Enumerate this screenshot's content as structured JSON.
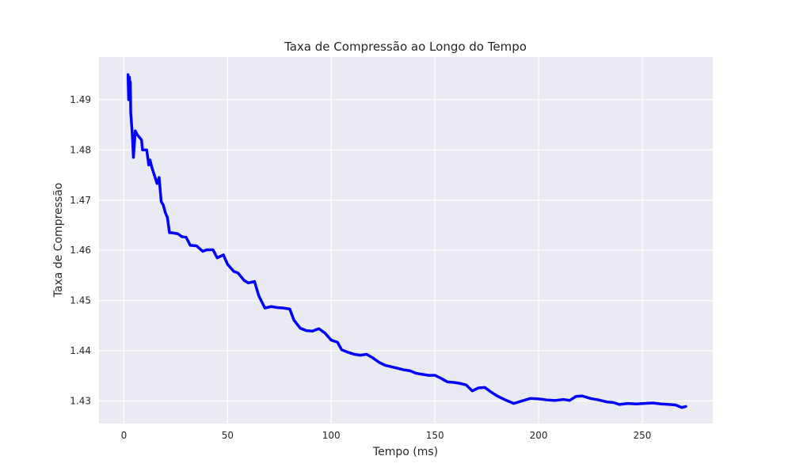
{
  "chart_data": {
    "type": "line",
    "title": "Taxa de Compressão ao Longo do Tempo",
    "xlabel": "Tempo (ms)",
    "ylabel": "Taxa de Compressão",
    "xlim": [
      -12,
      284
    ],
    "ylim": [
      1.4255,
      1.4985
    ],
    "xticks": [
      0,
      50,
      100,
      150,
      200,
      250
    ],
    "xtick_labels": [
      "0",
      "50",
      "100",
      "150",
      "200",
      "250"
    ],
    "yticks": [
      1.43,
      1.44,
      1.45,
      1.46,
      1.47,
      1.48,
      1.49
    ],
    "ytick_labels": [
      "1.43",
      "1.44",
      "1.45",
      "1.46",
      "1.47",
      "1.48",
      "1.49"
    ],
    "grid": true,
    "legend": "none",
    "colors": {
      "background": "#eaeaf2",
      "grid": "#ffffff",
      "line": "#0000ff"
    },
    "series": [
      {
        "x": [
          2.0,
          2.3,
          2.6,
          2.9,
          3.0,
          3.1,
          3.3,
          4.0,
          4.6,
          5.5,
          6.5,
          8.5,
          9.0,
          11.0,
          12.0,
          12.6,
          13.5,
          16.0,
          17.0,
          18.0,
          19.0,
          20.0,
          21.0,
          22.0,
          23.0,
          26.0,
          28.0,
          30.0,
          32.0,
          35.0,
          38.0,
          40.0,
          43.0,
          45.0,
          48.0,
          50.0,
          53.0,
          55.0,
          58.0,
          60.0,
          63.0,
          65.0,
          68.0,
          71.0,
          74.0,
          77.0,
          80.0,
          82.0,
          85.0,
          88.0,
          91.0,
          94.0,
          97.0,
          100.0,
          103.0,
          105.0,
          108.0,
          111.0,
          114.0,
          117.0,
          120.0,
          123.0,
          126.0,
          129.0,
          132.0,
          135.0,
          138.0,
          141.0,
          144.0,
          147.0,
          150.0,
          153.0,
          156.0,
          159.0,
          162.0,
          165.0,
          168.0,
          171.0,
          174.0,
          177.0,
          180.0,
          184.0,
          188.0,
          192.0,
          196.0,
          200.0,
          204.0,
          208.0,
          212.0,
          215.0,
          218.0,
          221.0,
          225.0,
          229.0,
          233.0,
          236.0,
          239.0,
          243.0,
          247.0,
          251.0,
          255.0,
          259.0,
          263.0,
          266.0,
          269.0,
          271.0
        ],
        "y": [
          1.495,
          1.49,
          1.4945,
          1.4935,
          1.4905,
          1.4935,
          1.4875,
          1.4835,
          1.4785,
          1.4838,
          1.483,
          1.482,
          1.48,
          1.48,
          1.477,
          1.478,
          1.4765,
          1.4733,
          1.4745,
          1.4697,
          1.469,
          1.4675,
          1.4665,
          1.4635,
          1.4635,
          1.4633,
          1.4627,
          1.4626,
          1.461,
          1.4609,
          1.4598,
          1.4601,
          1.4601,
          1.4585,
          1.4591,
          1.4572,
          1.4558,
          1.4555,
          1.454,
          1.4535,
          1.4538,
          1.451,
          1.4485,
          1.4488,
          1.4486,
          1.4485,
          1.4483,
          1.4461,
          1.4445,
          1.444,
          1.4439,
          1.4444,
          1.4435,
          1.4421,
          1.4417,
          1.4402,
          1.4397,
          1.4393,
          1.4391,
          1.4393,
          1.4386,
          1.4377,
          1.4371,
          1.4368,
          1.4365,
          1.4362,
          1.436,
          1.4355,
          1.4353,
          1.4351,
          1.4351,
          1.4345,
          1.4338,
          1.4337,
          1.4335,
          1.4332,
          1.432,
          1.4326,
          1.4327,
          1.4318,
          1.431,
          1.4302,
          1.4295,
          1.43,
          1.4305,
          1.4304,
          1.4302,
          1.4301,
          1.4303,
          1.4301,
          1.4309,
          1.431,
          1.4305,
          1.4302,
          1.4298,
          1.4297,
          1.4293,
          1.4295,
          1.4294,
          1.4295,
          1.4296,
          1.4294,
          1.4293,
          1.4292,
          1.4287,
          1.4289
        ]
      }
    ]
  }
}
